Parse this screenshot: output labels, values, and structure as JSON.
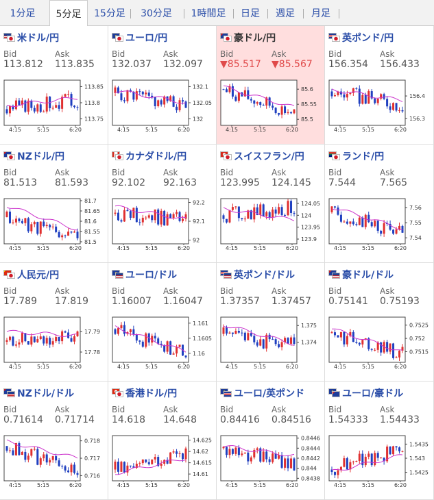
{
  "tabs": [
    "1分足",
    "5分足",
    "15分足",
    "30分足",
    "1時間足",
    "日足",
    "週足",
    "月足"
  ],
  "active_tab": 1,
  "labels": {
    "bid": "Bid",
    "ask": "Ask"
  },
  "colors": {
    "link": "#2a4da8",
    "down": "#e04a4a",
    "highlight": "#ffdede",
    "ma": "#cc33cc",
    "up": "#e03030",
    "dn": "#2040c0"
  },
  "x_ticks": [
    "4:15",
    "5:15",
    "6:20"
  ],
  "pairs": [
    {
      "name": "米ドル/円",
      "bid": "113.812",
      "ask": "113.835",
      "down": false,
      "highlight": false,
      "flags": [
        "us",
        "jp"
      ],
      "chart_data": {
        "type": "candlestick",
        "yticks": [
          "113.85",
          "113.8",
          "113.75"
        ],
        "ylim": [
          113.73,
          113.87
        ],
        "start": 113.78,
        "end": 113.81,
        "ma_start": 113.79,
        "ma_end": 113.815,
        "seed": 3
      }
    },
    {
      "name": "ユーロ/円",
      "bid": "132.037",
      "ask": "132.097",
      "down": false,
      "highlight": false,
      "flags": [
        "eu",
        "jp"
      ],
      "chart_data": {
        "type": "candlestick",
        "yticks": [
          "132.1",
          "132.05",
          "132"
        ],
        "ylim": [
          131.98,
          132.12
        ],
        "start": 132.08,
        "end": 132.04,
        "ma_start": 132.09,
        "ma_end": 132.05,
        "seed": 5
      }
    },
    {
      "name": "豪ドル/円",
      "bid": "85.517",
      "ask": "85.567",
      "down": true,
      "highlight": true,
      "flags": [
        "au",
        "jp"
      ],
      "chart_data": {
        "type": "candlestick",
        "yticks": [
          "85.6",
          "85.55",
          "85.5"
        ],
        "ylim": [
          85.48,
          85.63
        ],
        "start": 85.6,
        "end": 85.52,
        "ma_start": 85.61,
        "ma_end": 85.54,
        "seed": 7
      }
    },
    {
      "name": "英ポンド/円",
      "bid": "156.354",
      "ask": "156.433",
      "down": false,
      "highlight": false,
      "flags": [
        "gb",
        "jp"
      ],
      "chart_data": {
        "type": "candlestick",
        "yticks": [
          "156.4",
          "156.3"
        ],
        "ylim": [
          156.27,
          156.47
        ],
        "start": 156.42,
        "end": 156.36,
        "ma_start": 156.43,
        "ma_end": 156.38,
        "seed": 9
      }
    },
    {
      "name": "NZドル/円",
      "bid": "81.513",
      "ask": "81.593",
      "down": false,
      "highlight": false,
      "flags": [
        "nz",
        "jp"
      ],
      "chart_data": {
        "type": "candlestick",
        "yticks": [
          "81.7",
          "81.65",
          "81.6",
          "81.55",
          "81.5"
        ],
        "ylim": [
          81.49,
          81.71
        ],
        "start": 81.62,
        "end": 81.52,
        "ma_start": 81.68,
        "ma_end": 81.56,
        "seed": 11
      }
    },
    {
      "name": "カナダドル/円",
      "bid": "92.102",
      "ask": "92.163",
      "down": false,
      "highlight": false,
      "flags": [
        "ca",
        "jp"
      ],
      "chart_data": {
        "type": "candlestick",
        "yticks": [
          "92.2",
          "92.1",
          "92"
        ],
        "ylim": [
          91.98,
          92.22
        ],
        "start": 92.14,
        "end": 92.11,
        "ma_start": 92.18,
        "ma_end": 92.11,
        "seed": 13
      }
    },
    {
      "name": "スイスフラン/円",
      "bid": "123.995",
      "ask": "124.145",
      "down": false,
      "highlight": false,
      "flags": [
        "ch",
        "jp"
      ],
      "chart_data": {
        "type": "candlestick",
        "yticks": [
          "124.05",
          "124",
          "123.95",
          "123.9"
        ],
        "ylim": [
          123.88,
          124.07
        ],
        "start": 124.0,
        "end": 124.03,
        "ma_start": 124.03,
        "ma_end": 123.98,
        "seed": 15
      }
    },
    {
      "name": "ランド/円",
      "bid": "7.544",
      "ask": "7.565",
      "down": false,
      "highlight": false,
      "flags": [
        "za",
        "jp"
      ],
      "chart_data": {
        "type": "candlestick",
        "yticks": [
          "7.56",
          "7.55",
          "7.54"
        ],
        "ylim": [
          7.536,
          7.566
        ],
        "start": 7.557,
        "end": 7.543,
        "ma_start": 7.561,
        "ma_end": 7.546,
        "seed": 17
      }
    },
    {
      "name": "人民元/円",
      "bid": "17.789",
      "ask": "17.819",
      "down": false,
      "highlight": false,
      "flags": [
        "cn",
        "jp"
      ],
      "chart_data": {
        "type": "candlestick",
        "yticks": [
          "17.79",
          "17.78"
        ],
        "ylim": [
          17.775,
          17.797
        ],
        "start": 17.785,
        "end": 17.787,
        "ma_start": 17.79,
        "ma_end": 17.788,
        "seed": 19
      }
    },
    {
      "name": "ユーロ/ドル",
      "bid": "1.16007",
      "ask": "1.16047",
      "down": false,
      "highlight": false,
      "flags": [
        "eu",
        "us"
      ],
      "chart_data": {
        "type": "candlestick",
        "yticks": [
          "1.161",
          "1.1605",
          "1.16"
        ],
        "ylim": [
          1.1597,
          1.1612
        ],
        "start": 1.1608,
        "end": 1.16,
        "ma_start": 1.1609,
        "ma_end": 1.16005,
        "seed": 21
      }
    },
    {
      "name": "英ポンド/ドル",
      "bid": "1.37357",
      "ask": "1.37457",
      "down": false,
      "highlight": false,
      "flags": [
        "gb",
        "us"
      ],
      "chart_data": {
        "type": "candlestick",
        "yticks": [
          "1.375",
          "1.374"
        ],
        "ylim": [
          1.3728,
          1.3755
        ],
        "start": 1.3745,
        "end": 1.3738,
        "ma_start": 1.3751,
        "ma_end": 1.3739,
        "seed": 23
      }
    },
    {
      "name": "豪ドル/ドル",
      "bid": "0.75141",
      "ask": "0.75193",
      "down": false,
      "highlight": false,
      "flags": [
        "au",
        "us"
      ],
      "chart_data": {
        "type": "candlestick",
        "yticks": [
          "0.7525",
          "0.752",
          "0.7515"
        ],
        "ylim": [
          0.7511,
          0.7528
        ],
        "start": 0.7522,
        "end": 0.7514,
        "ma_start": 0.7524,
        "ma_end": 0.7515,
        "seed": 25
      }
    },
    {
      "name": "NZドル/ドル",
      "bid": "0.71614",
      "ask": "0.71714",
      "down": false,
      "highlight": false,
      "flags": [
        "nz",
        "us"
      ],
      "chart_data": {
        "type": "candlestick",
        "yticks": [
          "0.718",
          "0.717",
          "0.716"
        ],
        "ylim": [
          0.7157,
          0.7183
        ],
        "start": 0.7177,
        "end": 0.7162,
        "ma_start": 0.718,
        "ma_end": 0.717,
        "seed": 27
      }
    },
    {
      "name": "香港ドル/円",
      "bid": "14.618",
      "ask": "14.648",
      "down": false,
      "highlight": false,
      "flags": [
        "hk",
        "jp"
      ],
      "chart_data": {
        "type": "candlestick",
        "yticks": [
          "14.625",
          "14.62",
          "14.615",
          "14.61"
        ],
        "ylim": [
          14.607,
          14.627
        ],
        "start": 14.612,
        "end": 14.62,
        "ma_start": 14.61,
        "ma_end": 14.617,
        "seed": 29
      }
    },
    {
      "name": "ユーロ/英ポンド",
      "bid": "0.84416",
      "ask": "0.84516",
      "down": false,
      "highlight": false,
      "flags": [
        "eu",
        "gb"
      ],
      "chart_data": {
        "type": "candlestick",
        "yticks": [
          "0.8446",
          "0.8444",
          "0.8442",
          "0.844",
          "0.8438"
        ],
        "ylim": [
          0.84375,
          0.84465
        ],
        "start": 0.8444,
        "end": 0.8441,
        "ma_start": 0.84445,
        "ma_end": 0.84425,
        "seed": 31
      }
    },
    {
      "name": "ユーロ/豪ドル",
      "bid": "1.54333",
      "ask": "1.54433",
      "down": false,
      "highlight": false,
      "flags": [
        "eu",
        "au"
      ],
      "chart_data": {
        "type": "candlestick",
        "yticks": [
          "1.5435",
          "1.543",
          "1.5425"
        ],
        "ylim": [
          1.5422,
          1.5438
        ],
        "start": 1.5426,
        "end": 1.5433,
        "ma_start": 1.5425,
        "ma_end": 1.5431,
        "seed": 33
      }
    }
  ]
}
